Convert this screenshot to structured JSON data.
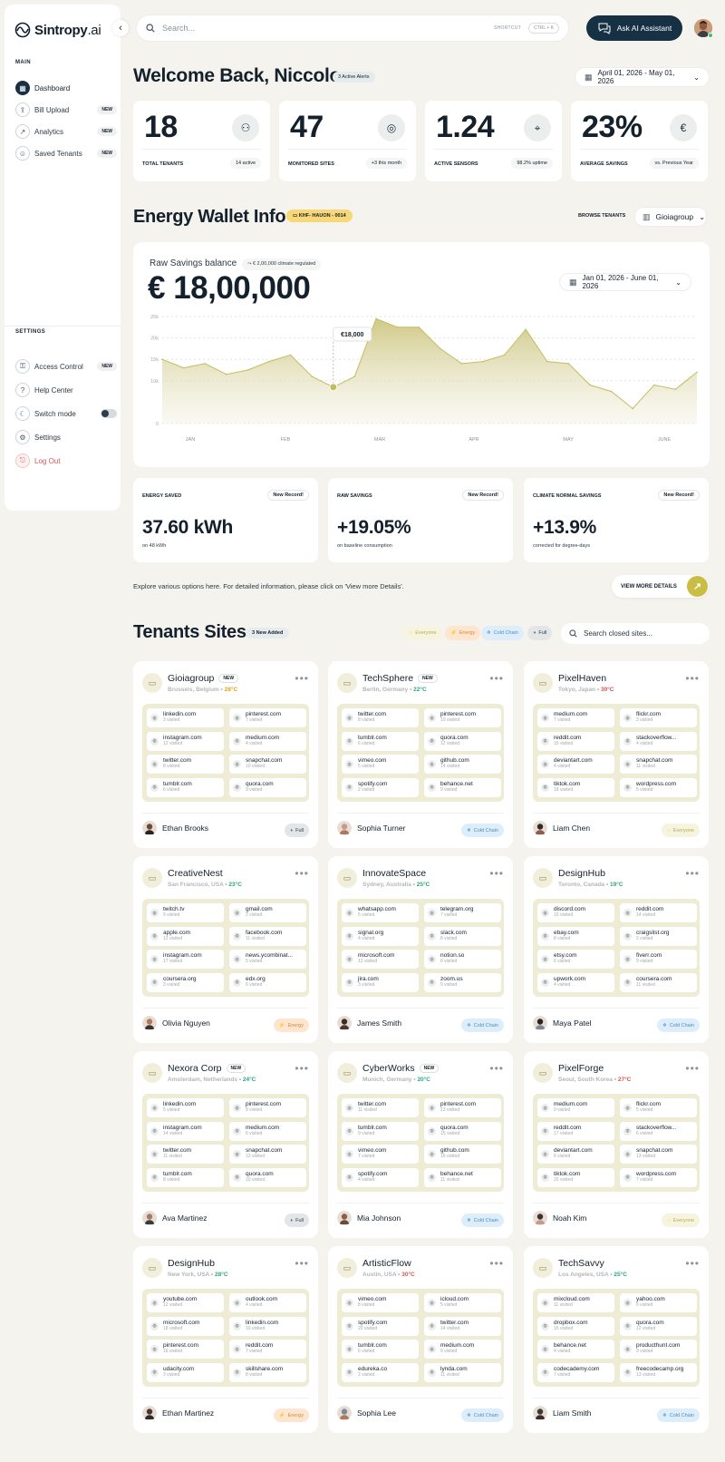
{
  "app": {
    "brand": "Sintropy",
    "brand_suffix": ".ai"
  },
  "sidebar": {
    "main_label": "MAIN",
    "main_items": [
      {
        "label": "Dashboard",
        "badge": "",
        "icon": "dashboard-icon",
        "active": true
      },
      {
        "label": "Bill Upload",
        "badge": "NEW",
        "icon": "upload-icon"
      },
      {
        "label": "Analytics",
        "badge": "NEW",
        "icon": "analytics-icon"
      },
      {
        "label": "Saved Tenants",
        "badge": "NEW",
        "icon": "user-icon"
      }
    ],
    "settings_label": "SETTINGS",
    "settings_items": [
      {
        "label": "Access Control",
        "badge": "NEW",
        "icon": "access-icon"
      },
      {
        "label": "Help Center",
        "badge": "",
        "icon": "help-icon"
      },
      {
        "label": "Switch mode",
        "badge": "",
        "icon": "moon-icon"
      },
      {
        "label": "Settings",
        "badge": "",
        "icon": "gear-icon"
      },
      {
        "label": "Log Out",
        "badge": "",
        "icon": "logout-icon"
      }
    ]
  },
  "topbar": {
    "search_placeholder": "Search...",
    "shortcut_label": "SHORTCUT",
    "shortcut_keys": "CTRL + K",
    "ask_ai": "Ask AI Assistant"
  },
  "welcome": {
    "title": "Welcome Back, Niccolo",
    "alerts": "3 Active Alerts",
    "date_range": "April 01, 2026 - May 01, 2026"
  },
  "stats": [
    {
      "value": "18",
      "label": "TOTAL TENANTS",
      "sub": "14 active",
      "icon": "users-icon"
    },
    {
      "value": "47",
      "label": "MONITORED SITES",
      "sub": "+3 this month",
      "icon": "location-icon"
    },
    {
      "value": "1.24",
      "label": "ACTIVE SENSORS",
      "sub": "98.2% uptime",
      "icon": "sensor-icon"
    },
    {
      "value": "23%",
      "label": "AVERAGE SAVINGS",
      "sub": "vs. Previous Year",
      "icon": "euro-icon"
    }
  ],
  "wallet": {
    "title": "Energy Wallet Info",
    "code": "KHF- HAUON - 0014",
    "browse_label": "BROWSE TENANTS",
    "tenant": "Gioiagroup",
    "raw_label": "Raw Savings balance",
    "climate_tag": "€ 2,00,000 climate regulated",
    "balance": "€ 18,00,000",
    "date_range": "Jan 01, 2026 - June 01, 2026"
  },
  "chart_data": {
    "type": "area",
    "x_labels": [
      "JAN",
      "FEB",
      "MAR",
      "APR",
      "MAY",
      "JUNE"
    ],
    "y_ticks": [
      "0",
      "10k",
      "15k",
      "20k",
      "25k"
    ],
    "ylim": [
      0,
      25000
    ],
    "tooltip": "€18,000",
    "values": [
      15000,
      13000,
      14000,
      11500,
      12500,
      14500,
      16000,
      11000,
      8500,
      11000,
      24500,
      22500,
      22500,
      17500,
      14000,
      14500,
      16000,
      22000,
      14500,
      14000,
      9000,
      7500,
      3500,
      9000,
      8000,
      12000
    ]
  },
  "metrics": [
    {
      "title": "ENERGY SAVED",
      "badge": "New Record!",
      "value": "37.60 kWh",
      "sub": "on 48 kWh"
    },
    {
      "title": "RAW SAVINGS",
      "badge": "New Record!",
      "value": "+19.05%",
      "sub": "on baseline consumption"
    },
    {
      "title": "CLIMATE NORMAL SAVINGS",
      "badge": "New Record!",
      "value": "+13.9%",
      "sub": "corrected for degree-days"
    }
  ],
  "explore": {
    "text": "Explore various options here. For detailed information, please click on 'View more Details'.",
    "button": "VIEW MORE DETAILS"
  },
  "tenants": {
    "title": "Tenants Sites",
    "new_added": "3 New Added",
    "filters": [
      "Everyone",
      "Energy",
      "Cold Chain",
      "Full"
    ],
    "search_placeholder": "Search closed sites...",
    "sites": [
      {
        "name": "Gioiagroup",
        "new": "NEW",
        "location": "Brussels, Belgium",
        "temp": "28°C",
        "temp_color": "#e0a21a",
        "person": "Ethan Brooks",
        "tag": "Full",
        "domains": [
          [
            "linkedin.com",
            "3 visited"
          ],
          [
            "pinterest.com",
            "7 visited"
          ],
          [
            "instagram.com",
            "12 visited"
          ],
          [
            "medium.com",
            "4 visited"
          ],
          [
            "twitter.com",
            "8 visited"
          ],
          [
            "snapchat.com",
            "10 visited"
          ],
          [
            "tumblr.com",
            "6 visited"
          ],
          [
            "quora.com",
            "9 visited"
          ]
        ]
      },
      {
        "name": "TechSphere",
        "new": "NEW",
        "location": "Berlin, Germany",
        "temp": "22°C",
        "temp_color": "#2aa876",
        "person": "Sophia Turner",
        "tag": "Cold Chain",
        "domains": [
          [
            "twitter.com",
            "8 visited"
          ],
          [
            "pinterest.com",
            "10 visited"
          ],
          [
            "tumblr.com",
            "6 visited"
          ],
          [
            "quora.com",
            "12 visited"
          ],
          [
            "vimeo.com",
            "5 visited"
          ],
          [
            "github.com",
            "14 visited"
          ],
          [
            "spotify.com",
            "2 visited"
          ],
          [
            "behance.net",
            "9 visited"
          ]
        ]
      },
      {
        "name": "PixelHaven",
        "new": "",
        "location": "Tokyo, Japan",
        "temp": "30°C",
        "temp_color": "#d9534f",
        "person": "Liam Chen",
        "tag": "Everyone",
        "domains": [
          [
            "medium.com",
            "7 visited"
          ],
          [
            "flickr.com",
            "3 visited"
          ],
          [
            "reddit.com",
            "15 visited"
          ],
          [
            "stackoverflow...",
            "4 visited"
          ],
          [
            "deviantart.com",
            "4 visited"
          ],
          [
            "snapchat.com",
            "11 visited"
          ],
          [
            "tiktok.com",
            "18 visited"
          ],
          [
            "wordpress.com",
            "5 visited"
          ]
        ]
      },
      {
        "name": "CreativeNest",
        "new": "",
        "location": "San Francisco, USA",
        "temp": "23°C",
        "temp_color": "#2aa876",
        "person": "Olivia Nguyen",
        "tag": "Energy",
        "domains": [
          [
            "twitch.tv",
            "9 visited"
          ],
          [
            "gmail.com",
            "2 visited"
          ],
          [
            "apple.com",
            "13 visited"
          ],
          [
            "facebook.com",
            "11 visited"
          ],
          [
            "instagram.com",
            "17 visited"
          ],
          [
            "news.ycombinat...",
            "5 visited"
          ],
          [
            "coursera.org",
            "3 visited"
          ],
          [
            "edx.org",
            "6 visited"
          ]
        ]
      },
      {
        "name": "InnovateSpace",
        "new": "",
        "location": "Sydney, Australia",
        "temp": "25°C",
        "temp_color": "#2aa876",
        "person": "James Smith",
        "tag": "Cold Chain",
        "domains": [
          [
            "whatsapp.com",
            "5 visited"
          ],
          [
            "telegram.org",
            "7 visited"
          ],
          [
            "signal.org",
            "4 visited"
          ],
          [
            "slack.com",
            "8 visited"
          ],
          [
            "microsoft.com",
            "12 visited"
          ],
          [
            "notion.so",
            "6 visited"
          ],
          [
            "jira.com",
            "3 visited"
          ],
          [
            "zoom.us",
            "9 visited"
          ]
        ]
      },
      {
        "name": "DesignHub",
        "new": "",
        "location": "Toronto, Canada",
        "temp": "19°C",
        "temp_color": "#2aa876",
        "person": "Maya Patel",
        "tag": "Cold Chain",
        "domains": [
          [
            "discord.com",
            "10 visited"
          ],
          [
            "reddit.com",
            "14 visited"
          ],
          [
            "ebay.com",
            "8 visited"
          ],
          [
            "craigslist.org",
            "2 visited"
          ],
          [
            "etsy.com",
            "6 visited"
          ],
          [
            "fiverr.com",
            "9 visited"
          ],
          [
            "upwork.com",
            "4 visited"
          ],
          [
            "coursera.com",
            "11 visited"
          ]
        ]
      },
      {
        "name": "Nexora Corp",
        "new": "NEW",
        "location": "Amsterdam, Netherlands",
        "temp": "24°C",
        "temp_color": "#2aa876",
        "person": "Ava Martinez",
        "tag": "Full",
        "domains": [
          [
            "linkedin.com",
            "5 visited"
          ],
          [
            "pinterest.com",
            "9 visited"
          ],
          [
            "instagram.com",
            "14 visited"
          ],
          [
            "medium.com",
            "6 visited"
          ],
          [
            "twitter.com",
            "11 visited"
          ],
          [
            "snapchat.com",
            "13 visited"
          ],
          [
            "tumblr.com",
            "8 visited"
          ],
          [
            "quora.com",
            "10 visited"
          ]
        ]
      },
      {
        "name": "CyberWorks",
        "new": "NEW",
        "location": "Munich, Germany",
        "temp": "20°C",
        "temp_color": "#2aa876",
        "person": "Mia Johnson",
        "tag": "Cold Chain",
        "domains": [
          [
            "twitter.com",
            "11 visited"
          ],
          [
            "pinterest.com",
            "13 visited"
          ],
          [
            "tumblr.com",
            "9 visited"
          ],
          [
            "quora.com",
            "15 visited"
          ],
          [
            "vimeo.com",
            "7 visited"
          ],
          [
            "github.com",
            "16 visited"
          ],
          [
            "spotify.com",
            "4 visited"
          ],
          [
            "behance.net",
            "11 visited"
          ]
        ]
      },
      {
        "name": "PixelForge",
        "new": "",
        "location": "Seoul, South Korea",
        "temp": "27°C",
        "temp_color": "#d9534f",
        "person": "Noah Kim",
        "tag": "Everyone",
        "domains": [
          [
            "medium.com",
            "9 visited"
          ],
          [
            "flickr.com",
            "5 visited"
          ],
          [
            "reddit.com",
            "17 visited"
          ],
          [
            "stackoverflow...",
            "6 visited"
          ],
          [
            "deviantart.com",
            "6 visited"
          ],
          [
            "snapchat.com",
            "13 visited"
          ],
          [
            "tiktok.com",
            "20 visited"
          ],
          [
            "wordpress.com",
            "7 visited"
          ]
        ]
      },
      {
        "name": "DesignHub",
        "new": "",
        "location": "New York, USA",
        "temp": "28°C",
        "temp_color": "#2aa876",
        "person": "Ethan Martinez",
        "tag": "Energy",
        "domains": [
          [
            "youtube.com",
            "12 visited"
          ],
          [
            "outlook.com",
            "4 visited"
          ],
          [
            "microsoft.com",
            "18 visited"
          ],
          [
            "linkedin.com",
            "10 visited"
          ],
          [
            "pinterest.com",
            "16 visited"
          ],
          [
            "reddit.com",
            "7 visited"
          ],
          [
            "udacity.com",
            "3 visited"
          ],
          [
            "skillshare.com",
            "8 visited"
          ]
        ]
      },
      {
        "name": "ArtisticFlow",
        "new": "",
        "location": "Austin, USA",
        "temp": "30°C",
        "temp_color": "#d9534f",
        "person": "Sophia Lee",
        "tag": "Cold Chain",
        "domains": [
          [
            "vimeo.com",
            "8 visited"
          ],
          [
            "icloud.com",
            "5 visited"
          ],
          [
            "spotify.com",
            "20 visited"
          ],
          [
            "twitter.com",
            "14 visited"
          ],
          [
            "tumblr.com",
            "6 visited"
          ],
          [
            "medium.com",
            "9 visited"
          ],
          [
            "edureka.co",
            "2 visited"
          ],
          [
            "lynda.com",
            "11 visited"
          ]
        ]
      },
      {
        "name": "TechSavvy",
        "new": "",
        "location": "Los Angeles, USA",
        "temp": "25°C",
        "temp_color": "#2aa876",
        "person": "Liam Smith",
        "tag": "Cold Chain",
        "domains": [
          [
            "mixcloud.com",
            "11 visited"
          ],
          [
            "yahoo.com",
            "6 visited"
          ],
          [
            "dropbox.com",
            "15 visited"
          ],
          [
            "quora.com",
            "12 visited"
          ],
          [
            "behance.net",
            "4 visited"
          ],
          [
            "producthunt.com",
            "9 visited"
          ],
          [
            "codecademy.com",
            "7 visited"
          ],
          [
            "freecodecamp.org",
            "13 visited"
          ]
        ]
      }
    ]
  },
  "colors": {
    "primary": "#173144",
    "accent": "#c9be43",
    "chart_fill": "#d8d39a",
    "page_bg": "#f4f3ee"
  }
}
